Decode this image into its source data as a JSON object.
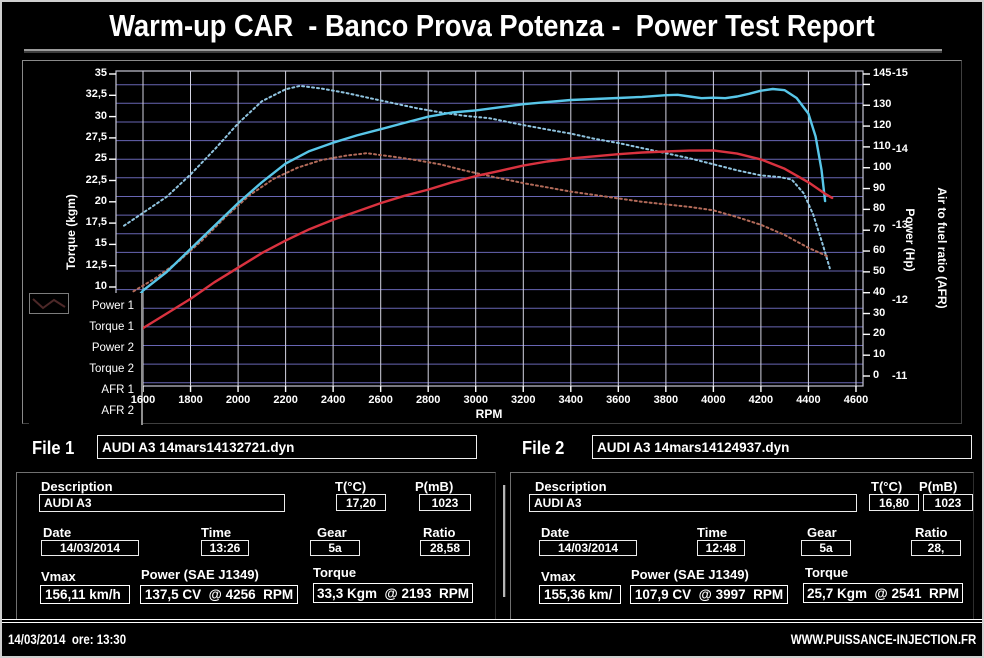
{
  "title": "Warm-up CAR  - Banco Prova Potenza -  Power Test Report",
  "chart_data": {
    "type": "line",
    "xlabel": "RPM",
    "ylabel_left": "Torque (kgm)",
    "ylabel_right": "Power (Hp)",
    "ylabel_afr": "Air to fuel ratio (AFR)",
    "x_axis": {
      "ticks": [
        1600,
        1800,
        2000,
        2200,
        2400,
        2600,
        2800,
        3000,
        3200,
        3400,
        3600,
        3800,
        4000,
        4200,
        4400,
        4600
      ]
    },
    "torque_ticks": [
      {
        "v": 35,
        "t": "35"
      },
      {
        "v": 32.5,
        "t": "32,5"
      },
      {
        "v": 30,
        "t": "30"
      },
      {
        "v": 27.5,
        "t": "27,5"
      },
      {
        "v": 25,
        "t": "25"
      },
      {
        "v": 22.5,
        "t": "22,5"
      },
      {
        "v": 20,
        "t": "20"
      },
      {
        "v": 17.5,
        "t": "17,5"
      },
      {
        "v": 15,
        "t": "15"
      },
      {
        "v": 12.5,
        "t": "12,5"
      },
      {
        "v": 10,
        "t": "10"
      }
    ],
    "power_ticks": [
      {
        "v": 145,
        "t": "145"
      },
      {
        "v": 140,
        "t": ""
      },
      {
        "v": 130,
        "t": "130"
      },
      {
        "v": 120,
        "t": "120"
      },
      {
        "v": 110,
        "t": "110"
      },
      {
        "v": 100,
        "t": "100"
      },
      {
        "v": 90,
        "t": "90"
      },
      {
        "v": 80,
        "t": "80"
      },
      {
        "v": 70,
        "t": "70"
      },
      {
        "v": 60,
        "t": "60"
      },
      {
        "v": 50,
        "t": "50"
      },
      {
        "v": 40,
        "t": "40"
      },
      {
        "v": 30,
        "t": "30"
      },
      {
        "v": 20,
        "t": "20"
      },
      {
        "v": 10,
        "t": "10"
      },
      {
        "v": 0,
        "t": "0"
      }
    ],
    "afr_ticks": [
      {
        "v": 15,
        "t": "-15"
      },
      {
        "v": 14,
        "t": "-14"
      },
      {
        "v": 13,
        "t": "-13"
      },
      {
        "v": 12,
        "t": "-12"
      },
      {
        "v": 11,
        "t": "-11"
      }
    ],
    "series": [
      {
        "name": "Torque 1",
        "axis": "torque",
        "color": "#90c4e0",
        "dash": "2 3",
        "width": 2,
        "points": [
          [
            1520,
            17.2
          ],
          [
            1600,
            18.7
          ],
          [
            1700,
            20.6
          ],
          [
            1800,
            23.2
          ],
          [
            1900,
            26.1
          ],
          [
            2000,
            29.2
          ],
          [
            2100,
            31.8
          ],
          [
            2200,
            33.2
          ],
          [
            2260,
            33.6
          ],
          [
            2350,
            33.3
          ],
          [
            2450,
            32.8
          ],
          [
            2550,
            32.2
          ],
          [
            2650,
            31.6
          ],
          [
            2750,
            31.0
          ],
          [
            2850,
            30.5
          ],
          [
            2950,
            30.1
          ],
          [
            3060,
            29.8
          ],
          [
            3200,
            29.0
          ],
          [
            3300,
            28.5
          ],
          [
            3400,
            28.0
          ],
          [
            3500,
            27.4
          ],
          [
            3600,
            26.9
          ],
          [
            3700,
            26.3
          ],
          [
            3800,
            25.7
          ],
          [
            3900,
            25.1
          ],
          [
            4000,
            24.4
          ],
          [
            4100,
            23.7
          ],
          [
            4200,
            23.1
          ],
          [
            4280,
            22.9
          ],
          [
            4330,
            22.6
          ],
          [
            4380,
            21.0
          ],
          [
            4420,
            18.5
          ],
          [
            4460,
            15.0
          ],
          [
            4490,
            12.2
          ]
        ]
      },
      {
        "name": "Torque 2",
        "axis": "torque",
        "color": "#b26a59",
        "dash": "2 3",
        "width": 2,
        "points": [
          [
            1560,
            9.5
          ],
          [
            1650,
            11
          ],
          [
            1750,
            13
          ],
          [
            1850,
            15.5
          ],
          [
            1950,
            18.3
          ],
          [
            2050,
            20.8
          ],
          [
            2150,
            22.7
          ],
          [
            2250,
            24.0
          ],
          [
            2350,
            24.9
          ],
          [
            2450,
            25.4
          ],
          [
            2541,
            25.7
          ],
          [
            2650,
            25.3
          ],
          [
            2750,
            24.9
          ],
          [
            2850,
            24.4
          ],
          [
            2950,
            23.7
          ],
          [
            3060,
            23.0
          ],
          [
            3200,
            22.2
          ],
          [
            3300,
            21.7
          ],
          [
            3400,
            21.2
          ],
          [
            3500,
            20.8
          ],
          [
            3600,
            20.4
          ],
          [
            3700,
            20.0
          ],
          [
            3800,
            19.7
          ],
          [
            3900,
            19.4
          ],
          [
            4000,
            19.0
          ],
          [
            4100,
            18.2
          ],
          [
            4200,
            17.3
          ],
          [
            4300,
            16.1
          ],
          [
            4400,
            14.6
          ],
          [
            4480,
            13.6
          ]
        ]
      },
      {
        "name": "Power 1",
        "axis": "power",
        "color": "#58c6e8",
        "dash": null,
        "width": 2.4,
        "points": [
          [
            1550,
            34
          ],
          [
            1600,
            41
          ],
          [
            1700,
            50
          ],
          [
            1800,
            61
          ],
          [
            1900,
            72
          ],
          [
            2000,
            83
          ],
          [
            2100,
            93
          ],
          [
            2200,
            102
          ],
          [
            2300,
            108
          ],
          [
            2400,
            112
          ],
          [
            2500,
            115.5
          ],
          [
            2600,
            118.5
          ],
          [
            2700,
            121.5
          ],
          [
            2800,
            124.5
          ],
          [
            2900,
            126.5
          ],
          [
            3000,
            127.5
          ],
          [
            3100,
            129
          ],
          [
            3200,
            130.5
          ],
          [
            3300,
            131.5
          ],
          [
            3400,
            132.5
          ],
          [
            3500,
            133
          ],
          [
            3600,
            133.5
          ],
          [
            3700,
            134
          ],
          [
            3800,
            134.8
          ],
          [
            3850,
            135
          ],
          [
            3900,
            134.2
          ],
          [
            3950,
            133.4
          ],
          [
            4000,
            133.6
          ],
          [
            4050,
            133.4
          ],
          [
            4100,
            134.2
          ],
          [
            4150,
            135.5
          ],
          [
            4200,
            137
          ],
          [
            4250,
            137.8
          ],
          [
            4300,
            137.2
          ],
          [
            4350,
            133.5
          ],
          [
            4400,
            126
          ],
          [
            4430,
            115
          ],
          [
            4455,
            99
          ],
          [
            4470,
            84
          ]
        ]
      },
      {
        "name": "Power 2",
        "axis": "power",
        "color": "#d9323f",
        "dash": null,
        "width": 2.4,
        "points": [
          [
            1560,
            20
          ],
          [
            1600,
            23
          ],
          [
            1700,
            30
          ],
          [
            1800,
            37
          ],
          [
            1900,
            45
          ],
          [
            2000,
            52
          ],
          [
            2100,
            59
          ],
          [
            2200,
            65
          ],
          [
            2300,
            70.5
          ],
          [
            2400,
            75
          ],
          [
            2500,
            79
          ],
          [
            2600,
            83
          ],
          [
            2700,
            86.5
          ],
          [
            2800,
            89.5
          ],
          [
            2900,
            93
          ],
          [
            3000,
            96
          ],
          [
            3100,
            98.5
          ],
          [
            3200,
            101
          ],
          [
            3300,
            103
          ],
          [
            3400,
            104.5
          ],
          [
            3500,
            105.5
          ],
          [
            3600,
            106.5
          ],
          [
            3700,
            107.3
          ],
          [
            3800,
            107.8
          ],
          [
            3900,
            108.2
          ],
          [
            4000,
            108.3
          ],
          [
            4100,
            106.8
          ],
          [
            4200,
            104
          ],
          [
            4300,
            99.5
          ],
          [
            4400,
            93
          ],
          [
            4470,
            87.5
          ],
          [
            4500,
            85.5
          ]
        ]
      },
      {
        "name": "AFR 1",
        "axis": "afr",
        "color": "#265e68",
        "dash": null,
        "width": 1,
        "points": []
      },
      {
        "name": "AFR 2",
        "axis": "afr",
        "color": "#4d2828",
        "dash": null,
        "width": 1,
        "points": []
      }
    ],
    "grid": {
      "h_color": "#6866b4",
      "v_color": "#d4d4e2",
      "border_color": "#c7c7d6"
    }
  },
  "legend": {
    "items": [
      {
        "label": "Power 1",
        "color": "#62c8e8",
        "style": "solid",
        "glyph": "curve"
      },
      {
        "label": "Torque 1",
        "color": "#90c4e0",
        "style": "dotted",
        "glyph": "curve"
      },
      {
        "label": "Power 2",
        "color": "#e03545",
        "style": "solid",
        "glyph": "curve"
      },
      {
        "label": "Torque 2",
        "color": "#b06a5a",
        "style": "dotted",
        "glyph": "curve"
      },
      {
        "label": "AFR 1",
        "color": "#265e68",
        "style": "solid",
        "glyph": "zigzag"
      },
      {
        "label": "AFR 2",
        "color": "#4d2828",
        "style": "solid",
        "glyph": "zigzag"
      }
    ]
  },
  "files": {
    "file1_label": "File 1",
    "file1_value": "AUDI A3 14mars14132721.dyn",
    "file2_label": "File 2",
    "file2_value": "AUDI A3 14mars14124937.dyn"
  },
  "panels": {
    "labels": {
      "description": "Description",
      "temp": "T(°C)",
      "pressure": "P(mB)",
      "date": "Date",
      "time": "Time",
      "gear": "Gear",
      "ratio": "Ratio",
      "vmax": "Vmax",
      "power": "Power (SAE J1349)",
      "torque": "Torque"
    },
    "file1": {
      "description": "AUDI A3",
      "temp": "17,20",
      "pressure": "1023",
      "date": "14/03/2014",
      "time": "13:26",
      "gear": "5a",
      "ratio": "28,58",
      "vmax": "156,11 km/h",
      "power": "137,5 CV  @ 4256  RPM",
      "torque": "33,3 Kgm  @ 2193  RPM"
    },
    "file2": {
      "description": "AUDI A3",
      "temp": "16,80",
      "pressure": "1023",
      "date": "14/03/2014",
      "time": "12:48",
      "gear": "5a",
      "ratio": "28,",
      "vmax": "155,36 km/",
      "power": "107,9 CV  @ 3997  RPM",
      "torque": "25,7 Kgm  @ 2541  RPM"
    }
  },
  "footer": {
    "left": "14/03/2014  ore: 13:30",
    "right": "WWW.PUISSANCE-INJECTION.FR"
  }
}
